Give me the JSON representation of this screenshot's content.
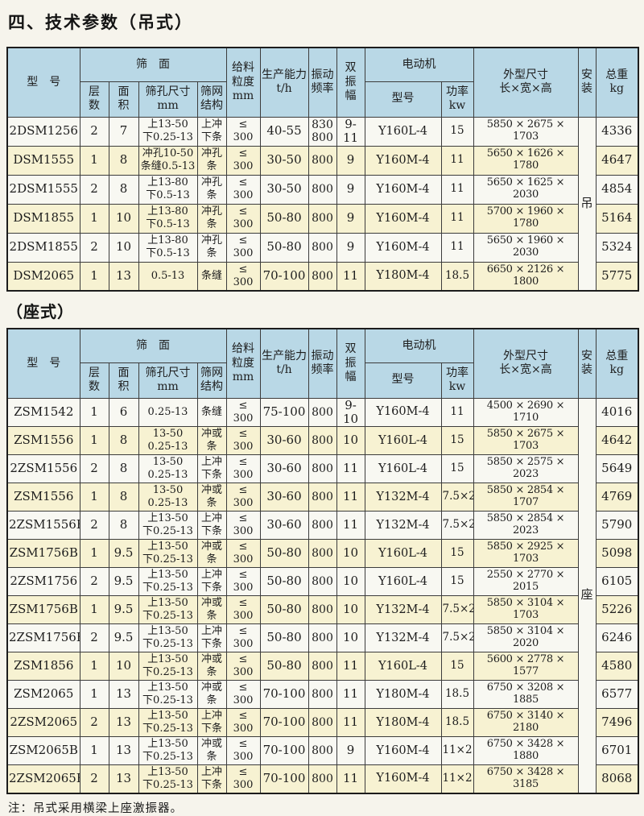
{
  "page": {
    "title": "四、技术参数（吊式）",
    "section2_label": "（座式）",
    "note": "注：吊式采用横梁上座激振器。"
  },
  "colors": {
    "header_bg": "#b9d8e6",
    "row_bg": "#f8f8f2",
    "row_alt_bg": "#f7f2d2",
    "border": "#3c3c3c",
    "page_bg": "#f6f4ec"
  },
  "header": {
    "model": "型　号",
    "screen_surface": "筛　面",
    "layers": "层\n数",
    "area": "面\n积",
    "aperture": "筛孔尺寸\nmm",
    "mesh": "筛网\n结构",
    "feed_size": "给料\n粒度\nmm",
    "capacity": "生产能力\nt/h",
    "frequency": "振动\n频率",
    "amplitude": "双\n振\n幅",
    "motor": "电动机",
    "motor_model": "型号",
    "power": "功率\nkw",
    "dimensions": "外型尺寸\n长×宽×高",
    "install": "安\n装",
    "weight": "总重\nkg"
  },
  "row_keys": [
    "model",
    "layers",
    "area",
    "aperture",
    "mesh",
    "feed",
    "capacity",
    "frequency",
    "amplitude",
    "motor_model",
    "power",
    "dimensions",
    "weight"
  ],
  "tables": [
    {
      "install": "吊",
      "rows": [
        [
          "2DSM1256",
          "2",
          "7",
          "上13-50\n下0.25-13",
          "上冲\n下条",
          "≤\n300",
          "40-55",
          "830\n800",
          "9-11",
          "Y160L-4",
          "15",
          "5850 × 2675 × 1703",
          "4336"
        ],
        [
          "DSM1555",
          "1",
          "8",
          "冲孔10-50\n条缝0.5-13",
          "冲孔\n条",
          "≤\n300",
          "30-50",
          "800",
          "9",
          "Y160M-4",
          "11",
          "5650 × 1626 × 1780",
          "4647"
        ],
        [
          "2DSM1555",
          "2",
          "8",
          "上13-80\n下0.5-13",
          "冲孔\n条",
          "≤\n300",
          "30-50",
          "800",
          "9",
          "Y160M-4",
          "11",
          "5650 × 1625 × 2030",
          "4854"
        ],
        [
          "DSM1855",
          "1",
          "10",
          "上13-80\n下0.5-13",
          "冲孔\n条",
          "≤\n300",
          "50-80",
          "800",
          "9",
          "Y160M-4",
          "11",
          "5700 × 1960 × 1780",
          "5164"
        ],
        [
          "2DSM1855",
          "2",
          "10",
          "上13-80\n下0.5-13",
          "冲孔\n条",
          "≤\n300",
          "50-80",
          "800",
          "9",
          "Y160M-4",
          "11",
          "5650 × 1960 × 2030",
          "5324"
        ],
        [
          "DSM2065",
          "1",
          "13",
          "0.5-13",
          "条缝",
          "≤\n300",
          "70-100",
          "800",
          "11",
          "Y180M-4",
          "18.5",
          "6650 × 2126 × 1800",
          "5775"
        ]
      ]
    },
    {
      "install": "座",
      "rows": [
        [
          "ZSM1542",
          "1",
          "6",
          "0.25-13",
          "条缝",
          "≤\n300",
          "75-100",
          "800",
          "9-10",
          "Y160M-4",
          "11",
          "4500 × 2690 × 1710",
          "4016"
        ],
        [
          "ZSM1556",
          "1",
          "8",
          "13-50\n0.25-13",
          "冲或\n条",
          "≤\n300",
          "30-60",
          "800",
          "10",
          "Y160L-4",
          "15",
          "5850 × 2675 × 1703",
          "4642"
        ],
        [
          "2ZSM1556",
          "2",
          "8",
          "13-50\n0.25-13",
          "上冲\n下条",
          "≤\n300",
          "30-60",
          "800",
          "11",
          "Y160L-4",
          "15",
          "5850 × 2575 × 2023",
          "5649"
        ],
        [
          "ZSM1556",
          "1",
          "8",
          "13-50\n0.25-13",
          "冲或\n条",
          "≤\n300",
          "30-60",
          "800",
          "11",
          "Y132M-4",
          "7.5×2",
          "5850 × 2854 × 1707",
          "4769"
        ],
        [
          "2ZSM1556B",
          "2",
          "8",
          "上13-50\n下0.25-13",
          "上冲\n下条",
          "≤\n300",
          "30-60",
          "800",
          "11",
          "Y132M-4",
          "7.5×2",
          "5850 × 2854 × 2023",
          "5790"
        ],
        [
          "ZSM1756B",
          "1",
          "9.5",
          "上13-50\n下0.25-13",
          "冲或\n条",
          "≤\n300",
          "50-80",
          "800",
          "10",
          "Y160L-4",
          "15",
          "5850 × 2925 × 1703",
          "5098"
        ],
        [
          "2ZSM1756",
          "2",
          "9.5",
          "上13-50\n下0.25-13",
          "上冲\n下条",
          "≤\n300",
          "50-80",
          "800",
          "10",
          "Y160L-4",
          "15",
          "2550 × 2770 × 2015",
          "6105"
        ],
        [
          "ZSM1756B",
          "1",
          "9.5",
          "上13-50\n下0.25-13",
          "冲或\n条",
          "≤\n300",
          "50-80",
          "800",
          "10",
          "Y132M-4",
          "7.5×2",
          "5850 × 3104 × 1703",
          "5226"
        ],
        [
          "2ZSM1756B",
          "2",
          "9.5",
          "上13-50\n下0.25-13",
          "上冲\n下条",
          "≤\n300",
          "50-80",
          "800",
          "10",
          "Y132M-4",
          "7.5×2",
          "5850 × 3104 × 2020",
          "6246"
        ],
        [
          "ZSM1856",
          "1",
          "10",
          "上13-50\n下0.25-13",
          "冲或\n条",
          "≤\n300",
          "50-80",
          "800",
          "11",
          "Y160L-4",
          "15",
          "5600 × 2778 × 1577",
          "4580"
        ],
        [
          "ZSM2065",
          "1",
          "13",
          "上13-50\n下0.25-13",
          "冲或\n条",
          "≤\n300",
          "70-100",
          "800",
          "11",
          "Y180M-4",
          "18.5",
          "6750 × 3208 × 1885",
          "6577"
        ],
        [
          "2ZSM2065",
          "2",
          "13",
          "上13-50\n下0.25-13",
          "上冲\n下条",
          "≤\n300",
          "70-100",
          "800",
          "11",
          "Y180M-4",
          "18.5",
          "6750 × 3140 × 2180",
          "7496"
        ],
        [
          "ZSM2065B",
          "1",
          "13",
          "上13-50\n下0.25-13",
          "冲或\n条",
          "≤\n300",
          "70-100",
          "800",
          "9",
          "Y160M-4",
          "11×2",
          "6750 × 3428 × 1880",
          "6701"
        ],
        [
          "2ZSM2065B",
          "2",
          "13",
          "上13-50\n下0.25-13",
          "上冲\n下条",
          "≤\n300",
          "70-100",
          "800",
          "11",
          "Y160M-4",
          "11×2",
          "6750 × 3428 × 3185",
          "8068"
        ]
      ]
    }
  ]
}
